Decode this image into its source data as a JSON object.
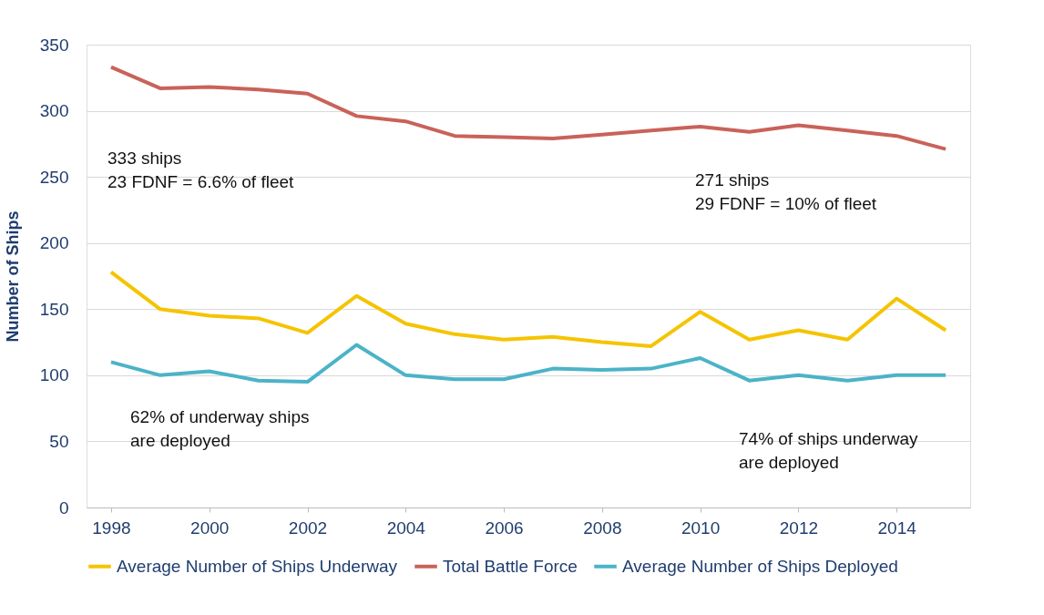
{
  "chart_data": {
    "type": "line",
    "ylabel": "Number of Ships",
    "x": [
      1998,
      1999,
      2000,
      2001,
      2002,
      2003,
      2004,
      2005,
      2006,
      2007,
      2008,
      2009,
      2010,
      2011,
      2012,
      2013,
      2014,
      2015
    ],
    "series": [
      {
        "name": "Average Number of Ships Underway",
        "color": "#f5c400",
        "values": [
          178,
          150,
          145,
          143,
          132,
          160,
          139,
          131,
          127,
          129,
          125,
          122,
          148,
          127,
          134,
          127,
          158,
          134
        ]
      },
      {
        "name": "Total Battle Force",
        "color": "#c9625a",
        "values": [
          333,
          317,
          318,
          316,
          313,
          296,
          292,
          281,
          280,
          279,
          282,
          285,
          288,
          284,
          289,
          285,
          281,
          271
        ]
      },
      {
        "name": "Average Number of Ships Deployed",
        "color": "#4bb3c8",
        "values": [
          110,
          100,
          103,
          96,
          95,
          123,
          100,
          97,
          97,
          105,
          104,
          105,
          113,
          96,
          100,
          96,
          100,
          100
        ]
      }
    ],
    "xlim": [
      1997.5,
      2015.5
    ],
    "xticks": [
      1998,
      2000,
      2002,
      2004,
      2006,
      2008,
      2010,
      2012,
      2014
    ],
    "ylim": [
      0,
      350
    ],
    "yticks": [
      0,
      50,
      100,
      150,
      200,
      250,
      300,
      350
    ],
    "grid": "y",
    "legend": "bottom",
    "marker": "none",
    "line_style": "solid",
    "annotations": [
      "333 ships\n23 FDNF =  6.6% of fleet",
      "271 ships\n29 FDNF = 10% of fleet",
      "62% of underway ships\nare deployed",
      "74% of ships underway\nare deployed"
    ]
  }
}
